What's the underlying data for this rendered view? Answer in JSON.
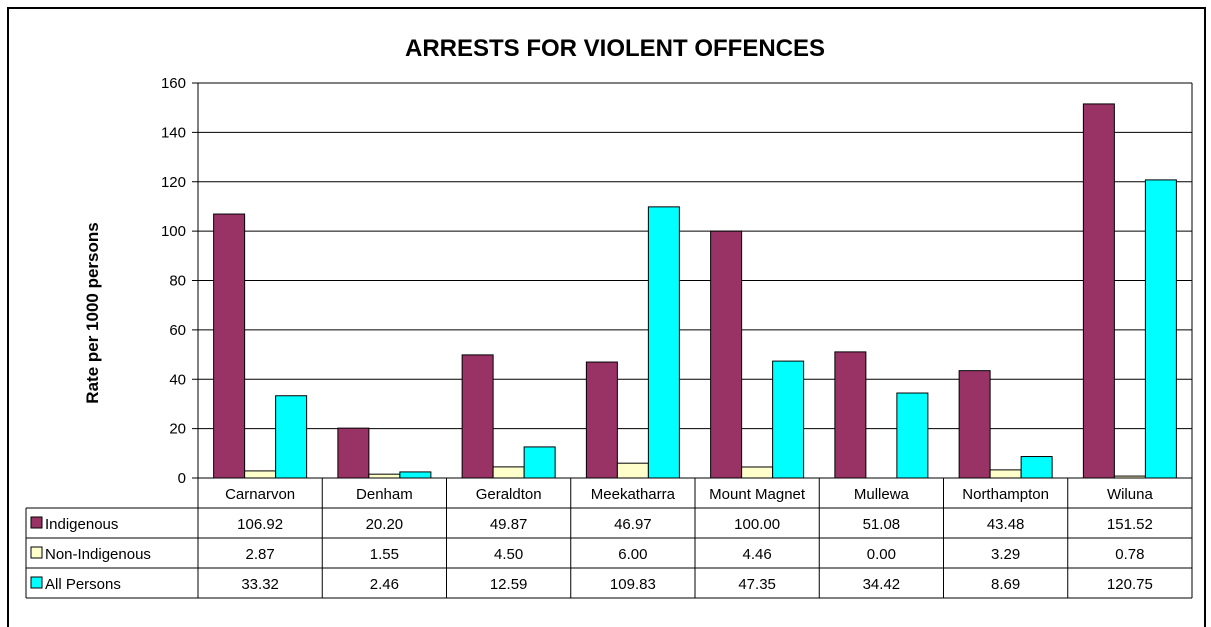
{
  "chart_data": {
    "type": "bar",
    "title": "ARRESTS FOR  VIOLENT OFFENCES",
    "ylabel": "Rate per 1000 persons",
    "xlabel": "",
    "ylim": [
      0,
      160
    ],
    "y_ticks": [
      0,
      20,
      40,
      60,
      80,
      100,
      120,
      140,
      160
    ],
    "grid": true,
    "legend": "data-table",
    "categories": [
      "Carnarvon",
      "Denham",
      "Geraldton",
      "Meekatharra",
      "Mount Magnet",
      "Mullewa",
      "Northampton",
      "Wiluna"
    ],
    "series": [
      {
        "name": "Indigenous",
        "color": "#993366",
        "values": [
          106.92,
          20.2,
          49.87,
          46.97,
          100.0,
          51.08,
          43.48,
          151.52
        ],
        "labels": [
          "106.92",
          "20.20",
          "49.87",
          "46.97",
          "100.00",
          "51.08",
          "43.48",
          "151.52"
        ]
      },
      {
        "name": "Non-Indigenous",
        "color": "#FFFFCC",
        "values": [
          2.87,
          1.55,
          4.5,
          6.0,
          4.46,
          0.0,
          3.29,
          0.78
        ],
        "labels": [
          "2.87",
          "1.55",
          "4.50",
          "6.00",
          "4.46",
          "0.00",
          "3.29",
          "0.78"
        ]
      },
      {
        "name": "All Persons",
        "color": "#00FFFF",
        "values": [
          33.32,
          2.46,
          12.59,
          109.83,
          47.35,
          34.42,
          8.69,
          120.75
        ],
        "labels": [
          "33.32",
          "2.46",
          "12.59",
          "109.83",
          "47.35",
          "34.42",
          "8.69",
          "120.75"
        ]
      }
    ]
  }
}
